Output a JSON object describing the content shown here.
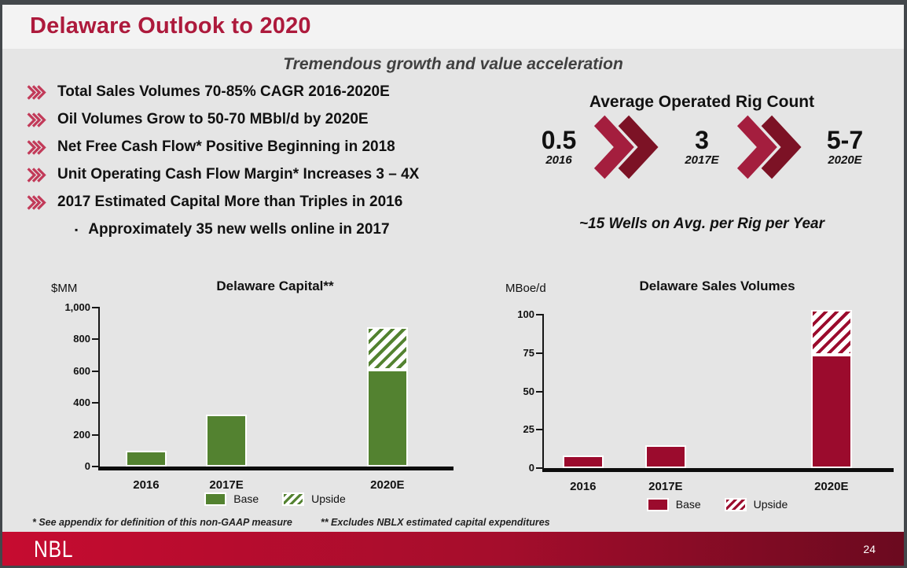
{
  "slide": {
    "title": "Delaware Outlook to 2020",
    "subtitle": "Tremendous growth and value acceleration",
    "logo_text": "NBL",
    "page_number": "24"
  },
  "bullets": {
    "items": [
      "Total Sales Volumes 70-85% CAGR 2016-2020E",
      "Oil Volumes Grow to 50-70 MBbl/d by 2020E",
      "Net Free Cash Flow* Positive Beginning in 2018",
      "Unit Operating Cash Flow Margin* Increases 3 – 4X",
      "2017 Estimated Capital More than Triples in 2016"
    ],
    "sub_item": "Approximately 35 new wells online in 2017"
  },
  "rig_count": {
    "title": "Average Operated Rig Count",
    "stages": [
      {
        "value": "0.5",
        "label": "2016"
      },
      {
        "value": "3",
        "label": "2017E"
      },
      {
        "value": "5-7",
        "label": "2020E"
      }
    ],
    "note": "~15 Wells on Avg. per Rig per Year"
  },
  "footnotes": {
    "note1": "* See appendix for definition of this non-GAAP measure",
    "note2": "** Excludes NBLX estimated capital expenditures"
  },
  "colors": {
    "accent": "#AD1A3C",
    "subtitle": "#404040",
    "titlebar_bg": "#F3F3F3",
    "content_bg": "#E5E5E5",
    "border": "#43474B",
    "bullet_chevron": "#C23A59",
    "chevron_light": "#A41E3E",
    "chevron_dark": "#7C1225",
    "footer_left": "#C60C30",
    "footer_right": "#6B0A1F"
  },
  "chart_data": [
    {
      "type": "bar",
      "title": "Delaware Capital**",
      "ylabel": "$MM",
      "categories": [
        "2016",
        "2017E",
        "2020E"
      ],
      "stacked": true,
      "ylim": [
        0,
        1000
      ],
      "yticklabels": [
        "0",
        "200",
        "400",
        "600",
        "800",
        "1,000"
      ],
      "series": [
        {
          "name": "Base",
          "values": [
            100,
            325,
            610
          ]
        },
        {
          "name": "Upside",
          "values": [
            0,
            0,
            265
          ]
        }
      ],
      "legend": [
        "Base",
        "Upside"
      ],
      "legend_position": "bottom",
      "grid": false,
      "base_color": "#538230"
    },
    {
      "type": "bar",
      "title": "Delaware Sales Volumes",
      "ylabel": "MBoe/d",
      "categories": [
        "2016",
        "2017E",
        "2020E"
      ],
      "stacked": true,
      "ylim": [
        0,
        100
      ],
      "yticklabels": [
        "0",
        "25",
        "50",
        "75",
        "100"
      ],
      "series": [
        {
          "name": "Base",
          "values": [
            8,
            15,
            74
          ]
        },
        {
          "name": "Upside",
          "values": [
            0,
            0,
            29
          ]
        }
      ],
      "legend": [
        "Base",
        "Upside"
      ],
      "legend_position": "bottom",
      "grid": false,
      "base_color": "#9B0B2D"
    }
  ]
}
